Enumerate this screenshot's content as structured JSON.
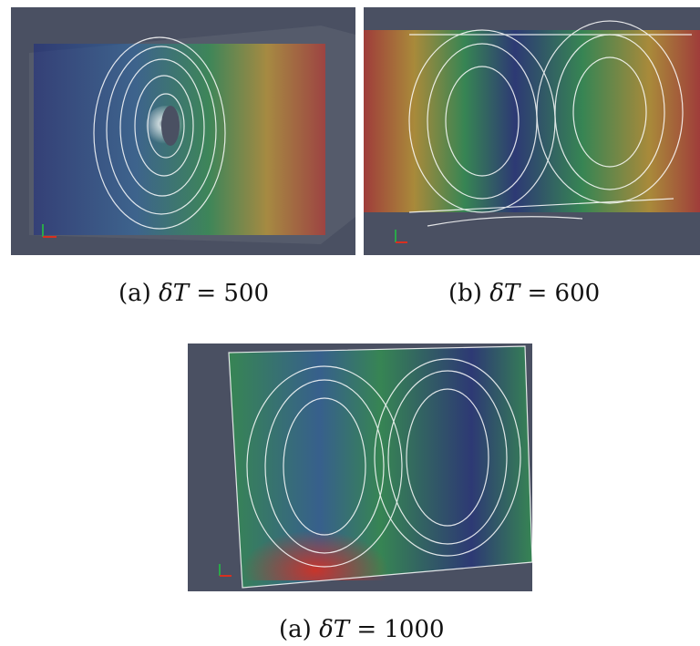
{
  "figures": [
    {
      "tag": "(a)",
      "symbol": "δT",
      "equals": "=",
      "value": "500"
    },
    {
      "tag": "(b)",
      "symbol": "δT",
      "equals": "=",
      "value": "600"
    },
    {
      "tag": "(a)",
      "symbol": "δT",
      "equals": "=",
      "value": "1000"
    }
  ],
  "colors": {
    "background": "#4a5062",
    "streamline": "#ffffff",
    "hot": "#d83020",
    "warm": "#e8b020",
    "mid": "#2aa84a",
    "cool": "#2a4aa0",
    "deep": "#1a2a80"
  },
  "visual": "flow visualization with white streamlines and colored velocity glyphs"
}
